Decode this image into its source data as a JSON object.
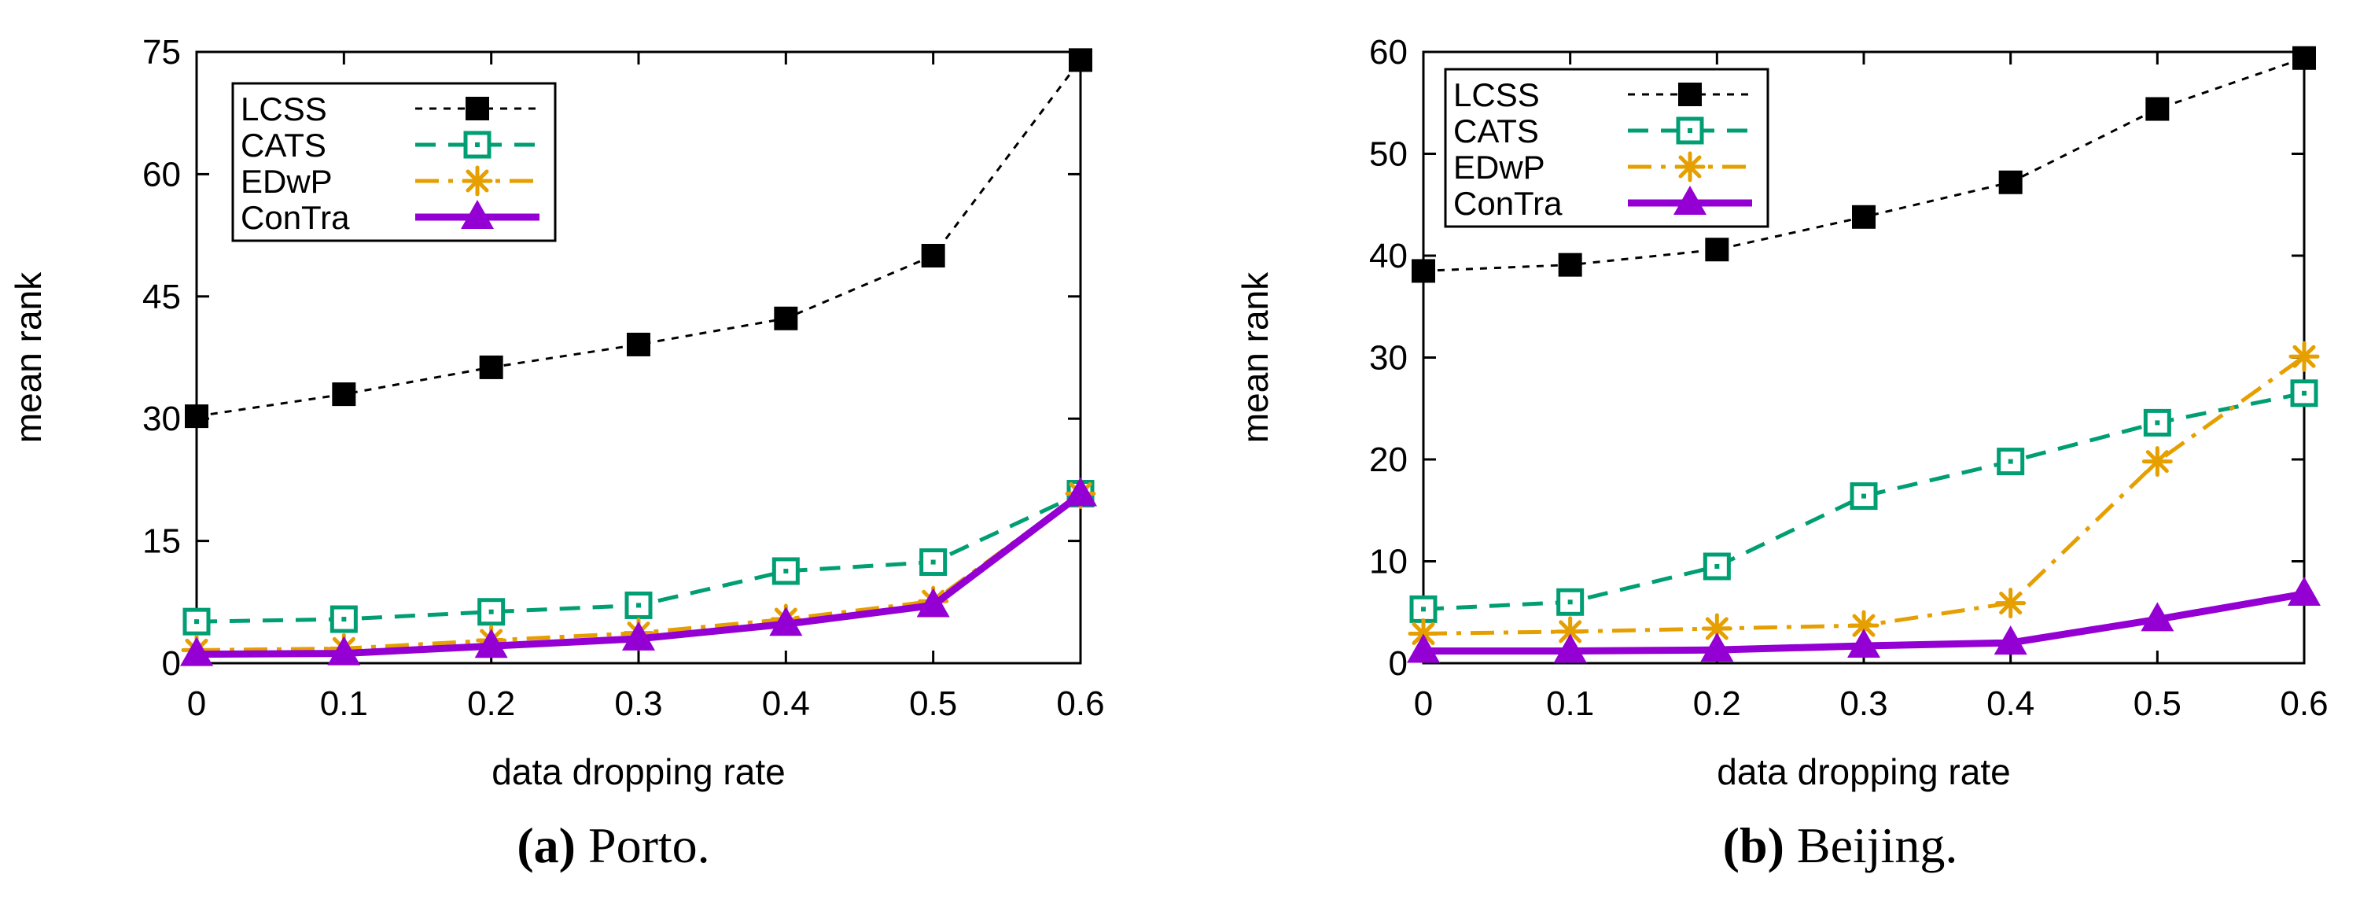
{
  "chart_data": [
    {
      "type": "line",
      "caption": {
        "label": "(a)",
        "text": "Porto."
      },
      "xlabel": "data dropping rate",
      "ylabel": "mean rank",
      "x": [
        0,
        0.1,
        0.2,
        0.3,
        0.4,
        0.5,
        0.6
      ],
      "x_tick_labels": [
        "0",
        "0.1",
        "0.2",
        "0.3",
        "0.4",
        "0.5",
        "0.6"
      ],
      "xlim": [
        0,
        0.6
      ],
      "ylim": [
        0,
        75
      ],
      "y_ticks": [
        0,
        15,
        30,
        45,
        60,
        75
      ],
      "legend_position": "top-left",
      "series": [
        {
          "name": "LCSS",
          "color": "#000000",
          "marker": "filled-square",
          "dash": "dotted",
          "values": [
            30.3,
            33,
            36.3,
            39.1,
            42.3,
            50,
            74
          ]
        },
        {
          "name": "CATS",
          "color": "#009e73",
          "marker": "open-square",
          "dash": "dashed",
          "values": [
            5.1,
            5.4,
            6.3,
            7.1,
            11.3,
            12.4,
            20.8
          ]
        },
        {
          "name": "EDwP",
          "color": "#e69f00",
          "marker": "asterisk",
          "dash": "dash-dot",
          "values": [
            1.6,
            1.8,
            2.8,
            3.7,
            5.4,
            7.6,
            20.8
          ]
        },
        {
          "name": "ConTra",
          "color": "#9400d3",
          "marker": "triangle",
          "dash": "solid",
          "values": [
            1.1,
            1.2,
            2.1,
            3.0,
            4.8,
            7.1,
            20.7
          ]
        }
      ]
    },
    {
      "type": "line",
      "caption": {
        "label": "(b)",
        "text": "Beijing."
      },
      "xlabel": "data dropping rate",
      "ylabel": "mean rank",
      "x": [
        0,
        0.1,
        0.2,
        0.3,
        0.4,
        0.5,
        0.6
      ],
      "x_tick_labels": [
        "0",
        "0.1",
        "0.2",
        "0.3",
        "0.4",
        "0.5",
        "0.6"
      ],
      "xlim": [
        0,
        0.6
      ],
      "ylim": [
        0,
        60
      ],
      "y_ticks": [
        0,
        10,
        20,
        30,
        40,
        50,
        60
      ],
      "legend_position": "top-left",
      "series": [
        {
          "name": "LCSS",
          "color": "#000000",
          "marker": "filled-square",
          "dash": "dotted",
          "values": [
            38.5,
            39.1,
            40.6,
            43.8,
            47.2,
            54.4,
            59.4
          ]
        },
        {
          "name": "CATS",
          "color": "#009e73",
          "marker": "open-square",
          "dash": "dashed",
          "values": [
            5.3,
            6.0,
            9.5,
            16.4,
            19.8,
            23.6,
            26.5
          ]
        },
        {
          "name": "EDwP",
          "color": "#e69f00",
          "marker": "asterisk",
          "dash": "dash-dot",
          "values": [
            2.9,
            3.1,
            3.4,
            3.7,
            5.9,
            19.8,
            30.1
          ]
        },
        {
          "name": "ConTra",
          "color": "#9400d3",
          "marker": "triangle",
          "dash": "solid",
          "values": [
            1.2,
            1.2,
            1.3,
            1.7,
            2.0,
            4.3,
            6.8
          ]
        }
      ]
    }
  ]
}
